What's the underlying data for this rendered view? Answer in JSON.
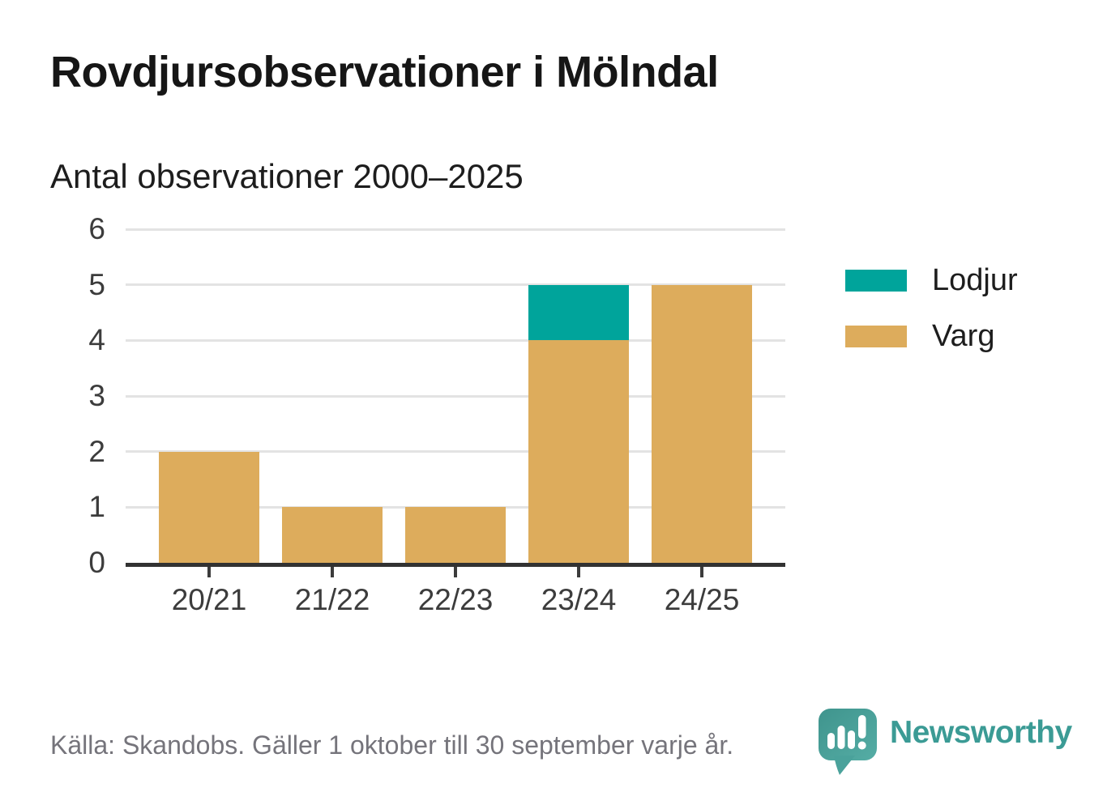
{
  "title": "Rovdjursobservationer i Mölndal",
  "subtitle": "Antal observationer 2000–2025",
  "source": "Källa: Skandobs. Gäller 1 oktober till 30 september varje år.",
  "brand": {
    "name": "Newsworthy",
    "color": "#3b9b95"
  },
  "colors": {
    "varg": "#ddac5c",
    "lodjur": "#00a49b",
    "axis": "#323232",
    "grid": "#e3e3e3",
    "tick_text": "#3c3c3c",
    "source_text": "#75747b",
    "background": "#ffffff"
  },
  "chart_data": {
    "type": "bar",
    "stacked": true,
    "title": "Rovdjursobservationer i Mölndal",
    "subtitle": "Antal observationer 2000–2025",
    "xlabel": "",
    "ylabel": "",
    "categories": [
      "20/21",
      "21/22",
      "22/23",
      "23/24",
      "24/25"
    ],
    "series": [
      {
        "name": "Varg",
        "color": "#ddac5c",
        "values": [
          2,
          1,
          1,
          4,
          5
        ]
      },
      {
        "name": "Lodjur",
        "color": "#00a49b",
        "values": [
          0,
          0,
          0,
          1,
          0
        ]
      }
    ],
    "totals": [
      2,
      1,
      1,
      5,
      5
    ],
    "ylim": [
      0,
      6
    ],
    "yticks": [
      0,
      1,
      2,
      3,
      4,
      5,
      6
    ],
    "grid": true,
    "legend_position": "right",
    "legend_items": [
      {
        "label": "Lodjur",
        "color": "#00a49b"
      },
      {
        "label": "Varg",
        "color": "#ddac5c"
      }
    ]
  }
}
